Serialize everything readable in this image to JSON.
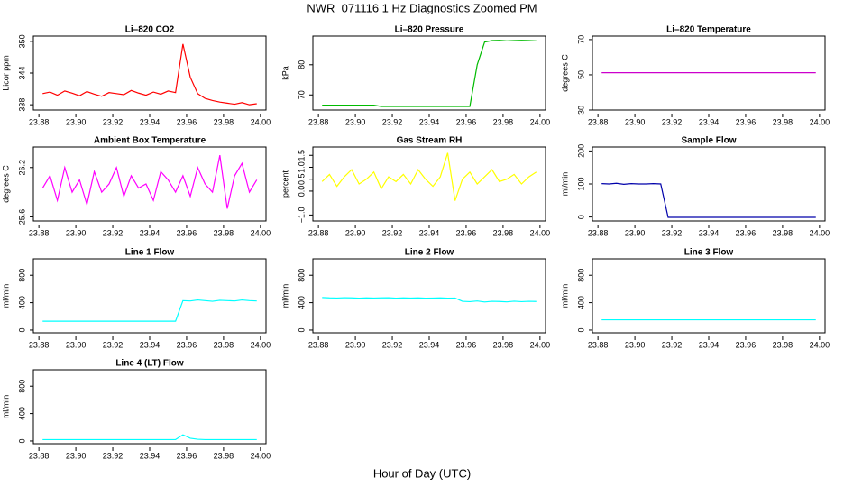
{
  "title": "NWR_071116  1 Hz Diagnostics Zoomed PM",
  "xlabel": "Hour of Day (UTC)",
  "chart_data": [
    {
      "type": "line",
      "title": "Li–820 CO2",
      "ylabel": "Licor ppm",
      "color": "#ff0000",
      "x": [
        23.882,
        23.886,
        23.89,
        23.894,
        23.898,
        23.902,
        23.906,
        23.91,
        23.914,
        23.918,
        23.922,
        23.926,
        23.93,
        23.934,
        23.938,
        23.942,
        23.946,
        23.95,
        23.954,
        23.958,
        23.962,
        23.966,
        23.97,
        23.974,
        23.978,
        23.982,
        23.986,
        23.99,
        23.994,
        23.998
      ],
      "values": [
        340.1,
        340.4,
        339.8,
        340.6,
        340.2,
        339.7,
        340.5,
        340.0,
        339.6,
        340.3,
        340.1,
        339.9,
        340.7,
        340.2,
        339.8,
        340.4,
        340.0,
        340.6,
        340.3,
        349.5,
        343.2,
        340.1,
        339.2,
        338.8,
        338.5,
        338.3,
        338.1,
        338.4,
        338.0,
        338.2
      ],
      "xlim": [
        23.877,
        24.003
      ],
      "ylim": [
        337,
        351
      ],
      "xticks": [
        {
          "value": 23.88,
          "label": "23.88"
        },
        {
          "value": 23.9,
          "label": "23.90"
        },
        {
          "value": 23.92,
          "label": "23.92"
        },
        {
          "value": 23.94,
          "label": "23.94"
        },
        {
          "value": 23.96,
          "label": "23.96"
        },
        {
          "value": 23.98,
          "label": "23.98"
        },
        {
          "value": 24,
          "label": "24.00"
        }
      ],
      "yticks": [
        338,
        344,
        350
      ]
    },
    {
      "type": "line",
      "title": "Li–820 Pressure",
      "ylabel": "kPa",
      "color": "#00bb00",
      "x": [
        23.882,
        23.886,
        23.89,
        23.894,
        23.898,
        23.902,
        23.906,
        23.91,
        23.914,
        23.918,
        23.922,
        23.926,
        23.93,
        23.934,
        23.938,
        23.942,
        23.946,
        23.95,
        23.954,
        23.958,
        23.962,
        23.966,
        23.97,
        23.974,
        23.978,
        23.982,
        23.986,
        23.99,
        23.994,
        23.998
      ],
      "values": [
        66.6,
        66.6,
        66.6,
        66.6,
        66.6,
        66.6,
        66.6,
        66.6,
        66.2,
        66.2,
        66.2,
        66.2,
        66.2,
        66.2,
        66.2,
        66.2,
        66.2,
        66.2,
        66.2,
        66.2,
        66.2,
        80,
        87.5,
        88.0,
        88.1,
        87.9,
        88.0,
        88.1,
        88.0,
        87.9
      ],
      "xlim": [
        23.877,
        24.003
      ],
      "ylim": [
        65,
        89.5
      ],
      "xticks": [
        {
          "value": 23.88,
          "label": "23.88"
        },
        {
          "value": 23.9,
          "label": "23.90"
        },
        {
          "value": 23.92,
          "label": "23.92"
        },
        {
          "value": 23.94,
          "label": "23.94"
        },
        {
          "value": 23.96,
          "label": "23.96"
        },
        {
          "value": 23.98,
          "label": "23.98"
        },
        {
          "value": 24,
          "label": "24.00"
        }
      ],
      "yticks": [
        70,
        80
      ]
    },
    {
      "type": "line",
      "title": "Li–820 Temperature",
      "ylabel": "degrees C",
      "color": "#cc00cc",
      "x": [
        23.882,
        23.886,
        23.89,
        23.894,
        23.898,
        23.902,
        23.906,
        23.91,
        23.914,
        23.918,
        23.922,
        23.926,
        23.93,
        23.934,
        23.938,
        23.942,
        23.946,
        23.95,
        23.954,
        23.958,
        23.962,
        23.966,
        23.97,
        23.974,
        23.978,
        23.982,
        23.986,
        23.99,
        23.994,
        23.998
      ],
      "values": [
        51.2,
        51.2,
        51.2,
        51.2,
        51.2,
        51.2,
        51.2,
        51.2,
        51.2,
        51.2,
        51.2,
        51.2,
        51.2,
        51.2,
        51.2,
        51.2,
        51.2,
        51.2,
        51.2,
        51.2,
        51.2,
        51.2,
        51.2,
        51.2,
        51.2,
        51.2,
        51.2,
        51.2,
        51.2,
        51.2
      ],
      "xlim": [
        23.877,
        24.003
      ],
      "ylim": [
        30,
        72
      ],
      "xticks": [
        {
          "value": 23.88,
          "label": "23.88"
        },
        {
          "value": 23.9,
          "label": "23.90"
        },
        {
          "value": 23.92,
          "label": "23.92"
        },
        {
          "value": 23.94,
          "label": "23.94"
        },
        {
          "value": 23.96,
          "label": "23.96"
        },
        {
          "value": 23.98,
          "label": "23.98"
        },
        {
          "value": 24,
          "label": "24.00"
        }
      ],
      "yticks": [
        30,
        50,
        70
      ]
    },
    {
      "type": "line",
      "title": "Ambient Box Temperature",
      "ylabel": "degrees C",
      "color": "#ff00ff",
      "x": [
        23.882,
        23.886,
        23.89,
        23.894,
        23.898,
        23.902,
        23.906,
        23.91,
        23.914,
        23.918,
        23.922,
        23.926,
        23.93,
        23.934,
        23.938,
        23.942,
        23.946,
        23.95,
        23.954,
        23.958,
        23.962,
        23.966,
        23.97,
        23.974,
        23.978,
        23.982,
        23.986,
        23.99,
        23.994,
        23.998
      ],
      "values": [
        25.95,
        26.1,
        25.8,
        26.2,
        25.9,
        26.05,
        25.75,
        26.15,
        25.9,
        26.0,
        26.2,
        25.85,
        26.1,
        25.95,
        26.0,
        25.8,
        26.15,
        26.05,
        25.9,
        26.1,
        25.85,
        26.2,
        26.0,
        25.9,
        26.35,
        25.7,
        26.1,
        26.25,
        25.9,
        26.05
      ],
      "xlim": [
        23.877,
        24.003
      ],
      "ylim": [
        25.55,
        26.45
      ],
      "xticks": [
        {
          "value": 23.88,
          "label": "23.88"
        },
        {
          "value": 23.9,
          "label": "23.90"
        },
        {
          "value": 23.92,
          "label": "23.92"
        },
        {
          "value": 23.94,
          "label": "23.94"
        },
        {
          "value": 23.96,
          "label": "23.96"
        },
        {
          "value": 23.98,
          "label": "23.98"
        },
        {
          "value": 24,
          "label": "24.00"
        }
      ],
      "yticks": [
        25.6,
        26.2
      ]
    },
    {
      "type": "line",
      "title": "Gas Stream RH",
      "ylabel": "percent",
      "color": "#ffff00",
      "x": [
        23.882,
        23.886,
        23.89,
        23.894,
        23.898,
        23.902,
        23.906,
        23.91,
        23.914,
        23.918,
        23.922,
        23.926,
        23.93,
        23.934,
        23.938,
        23.942,
        23.946,
        23.95,
        23.954,
        23.958,
        23.962,
        23.966,
        23.97,
        23.974,
        23.978,
        23.982,
        23.986,
        23.99,
        23.994,
        23.998
      ],
      "values": [
        0.4,
        0.7,
        0.2,
        0.6,
        0.9,
        0.3,
        0.5,
        0.8,
        0.1,
        0.6,
        0.4,
        0.7,
        0.3,
        0.9,
        0.5,
        0.2,
        0.6,
        1.6,
        -0.4,
        0.5,
        0.8,
        0.3,
        0.6,
        0.9,
        0.4,
        0.5,
        0.7,
        0.3,
        0.6,
        0.8
      ],
      "xlim": [
        23.877,
        24.003
      ],
      "ylim": [
        -1.25,
        1.85
      ],
      "xticks": [
        {
          "value": 23.88,
          "label": "23.88"
        },
        {
          "value": 23.9,
          "label": "23.90"
        },
        {
          "value": 23.92,
          "label": "23.92"
        },
        {
          "value": 23.94,
          "label": "23.94"
        },
        {
          "value": 23.96,
          "label": "23.96"
        },
        {
          "value": 23.98,
          "label": "23.98"
        },
        {
          "value": 24,
          "label": "24.00"
        }
      ],
      "yticks": [
        {
          "value": -1,
          "label": "−1.0"
        },
        {
          "value": 0,
          "label": "0.0"
        },
        {
          "value": 0.5,
          "label": "0.5"
        },
        {
          "value": 1,
          "label": "1.0"
        },
        {
          "value": 1.5,
          "label": "1.5"
        }
      ]
    },
    {
      "type": "line",
      "title": "Sample Flow",
      "ylabel": "ml/min",
      "color": "#0000aa",
      "x": [
        23.882,
        23.886,
        23.89,
        23.894,
        23.898,
        23.902,
        23.906,
        23.91,
        23.914,
        23.918,
        23.922,
        23.926,
        23.93,
        23.934,
        23.938,
        23.942,
        23.946,
        23.95,
        23.954,
        23.958,
        23.962,
        23.966,
        23.97,
        23.974,
        23.978,
        23.982,
        23.986,
        23.99,
        23.994,
        23.998
      ],
      "values": [
        101,
        100,
        102,
        99,
        101,
        100,
        100,
        101,
        100,
        -1,
        -1,
        -1,
        -1,
        -1,
        -1,
        -1,
        -1,
        -1,
        -1,
        -1,
        -1,
        -1,
        -1,
        -1,
        -1,
        -1,
        -1,
        -1,
        -1,
        -1
      ],
      "xlim": [
        23.877,
        24.003
      ],
      "ylim": [
        -12,
        212
      ],
      "xticks": [
        {
          "value": 23.88,
          "label": "23.88"
        },
        {
          "value": 23.9,
          "label": "23.90"
        },
        {
          "value": 23.92,
          "label": "23.92"
        },
        {
          "value": 23.94,
          "label": "23.94"
        },
        {
          "value": 23.96,
          "label": "23.96"
        },
        {
          "value": 23.98,
          "label": "23.98"
        },
        {
          "value": 24,
          "label": "24.00"
        }
      ],
      "yticks": [
        0,
        100,
        200
      ]
    },
    {
      "type": "line",
      "title": "Line 1 Flow",
      "ylabel": "ml/min",
      "color": "#00ffff",
      "x": [
        23.882,
        23.886,
        23.89,
        23.894,
        23.898,
        23.902,
        23.906,
        23.91,
        23.914,
        23.918,
        23.922,
        23.926,
        23.93,
        23.934,
        23.938,
        23.942,
        23.946,
        23.95,
        23.954,
        23.958,
        23.962,
        23.966,
        23.97,
        23.974,
        23.978,
        23.982,
        23.986,
        23.99,
        23.994,
        23.998
      ],
      "values": [
        130,
        130,
        130,
        130,
        130,
        130,
        130,
        130,
        130,
        130,
        130,
        130,
        130,
        130,
        130,
        130,
        130,
        130,
        130,
        430,
        425,
        440,
        430,
        420,
        435,
        430,
        425,
        440,
        430,
        425
      ],
      "xlim": [
        23.877,
        24.003
      ],
      "ylim": [
        -40,
        1040
      ],
      "xticks": [
        {
          "value": 23.88,
          "label": "23.88"
        },
        {
          "value": 23.9,
          "label": "23.90"
        },
        {
          "value": 23.92,
          "label": "23.92"
        },
        {
          "value": 23.94,
          "label": "23.94"
        },
        {
          "value": 23.96,
          "label": "23.96"
        },
        {
          "value": 23.98,
          "label": "23.98"
        },
        {
          "value": 24,
          "label": "24.00"
        }
      ],
      "yticks": [
        0,
        400,
        800
      ]
    },
    {
      "type": "line",
      "title": "Line 2 Flow",
      "ylabel": "ml/min",
      "color": "#00ffff",
      "x": [
        23.882,
        23.886,
        23.89,
        23.894,
        23.898,
        23.902,
        23.906,
        23.91,
        23.914,
        23.918,
        23.922,
        23.926,
        23.93,
        23.934,
        23.938,
        23.942,
        23.946,
        23.95,
        23.954,
        23.958,
        23.962,
        23.966,
        23.97,
        23.974,
        23.978,
        23.982,
        23.986,
        23.99,
        23.994,
        23.998
      ],
      "values": [
        475,
        470,
        468,
        472,
        470,
        465,
        470,
        468,
        470,
        472,
        466,
        470,
        468,
        470,
        465,
        468,
        470,
        466,
        468,
        420,
        415,
        425,
        410,
        420,
        418,
        412,
        422,
        415,
        420,
        418
      ],
      "xlim": [
        23.877,
        24.003
      ],
      "ylim": [
        -40,
        1040
      ],
      "xticks": [
        {
          "value": 23.88,
          "label": "23.88"
        },
        {
          "value": 23.9,
          "label": "23.90"
        },
        {
          "value": 23.92,
          "label": "23.92"
        },
        {
          "value": 23.94,
          "label": "23.94"
        },
        {
          "value": 23.96,
          "label": "23.96"
        },
        {
          "value": 23.98,
          "label": "23.98"
        },
        {
          "value": 24,
          "label": "24.00"
        }
      ],
      "yticks": [
        0,
        400,
        800
      ]
    },
    {
      "type": "line",
      "title": "Line 3 Flow",
      "ylabel": "ml/min",
      "color": "#00ffff",
      "x": [
        23.882,
        23.886,
        23.89,
        23.894,
        23.898,
        23.902,
        23.906,
        23.91,
        23.914,
        23.918,
        23.922,
        23.926,
        23.93,
        23.934,
        23.938,
        23.942,
        23.946,
        23.95,
        23.954,
        23.958,
        23.962,
        23.966,
        23.97,
        23.974,
        23.978,
        23.982,
        23.986,
        23.99,
        23.994,
        23.998
      ],
      "values": [
        150,
        150,
        150,
        150,
        150,
        150,
        150,
        150,
        150,
        150,
        150,
        150,
        150,
        150,
        150,
        150,
        150,
        150,
        150,
        150,
        150,
        150,
        150,
        150,
        150,
        150,
        150,
        150,
        150,
        150
      ],
      "xlim": [
        23.877,
        24.003
      ],
      "ylim": [
        -40,
        1040
      ],
      "xticks": [
        {
          "value": 23.88,
          "label": "23.88"
        },
        {
          "value": 23.9,
          "label": "23.90"
        },
        {
          "value": 23.92,
          "label": "23.92"
        },
        {
          "value": 23.94,
          "label": "23.94"
        },
        {
          "value": 23.96,
          "label": "23.96"
        },
        {
          "value": 23.98,
          "label": "23.98"
        },
        {
          "value": 24,
          "label": "24.00"
        }
      ],
      "yticks": [
        0,
        400,
        800
      ]
    },
    {
      "type": "line",
      "title": "Line 4 (LT) Flow",
      "ylabel": "ml/min",
      "color": "#00ffff",
      "x": [
        23.882,
        23.886,
        23.89,
        23.894,
        23.898,
        23.902,
        23.906,
        23.91,
        23.914,
        23.918,
        23.922,
        23.926,
        23.93,
        23.934,
        23.938,
        23.942,
        23.946,
        23.95,
        23.954,
        23.958,
        23.962,
        23.966,
        23.97,
        23.974,
        23.978,
        23.982,
        23.986,
        23.99,
        23.994,
        23.998
      ],
      "values": [
        20,
        20,
        20,
        20,
        20,
        20,
        20,
        20,
        20,
        20,
        20,
        20,
        20,
        20,
        20,
        20,
        20,
        20,
        20,
        90,
        40,
        25,
        20,
        20,
        20,
        20,
        20,
        20,
        20,
        20
      ],
      "xlim": [
        23.877,
        24.003
      ],
      "ylim": [
        -40,
        1040
      ],
      "xticks": [
        {
          "value": 23.88,
          "label": "23.88"
        },
        {
          "value": 23.9,
          "label": "23.90"
        },
        {
          "value": 23.92,
          "label": "23.92"
        },
        {
          "value": 23.94,
          "label": "23.94"
        },
        {
          "value": 23.96,
          "label": "23.96"
        },
        {
          "value": 23.98,
          "label": "23.98"
        },
        {
          "value": 24,
          "label": "24.00"
        }
      ],
      "yticks": [
        0,
        400,
        800
      ]
    }
  ]
}
